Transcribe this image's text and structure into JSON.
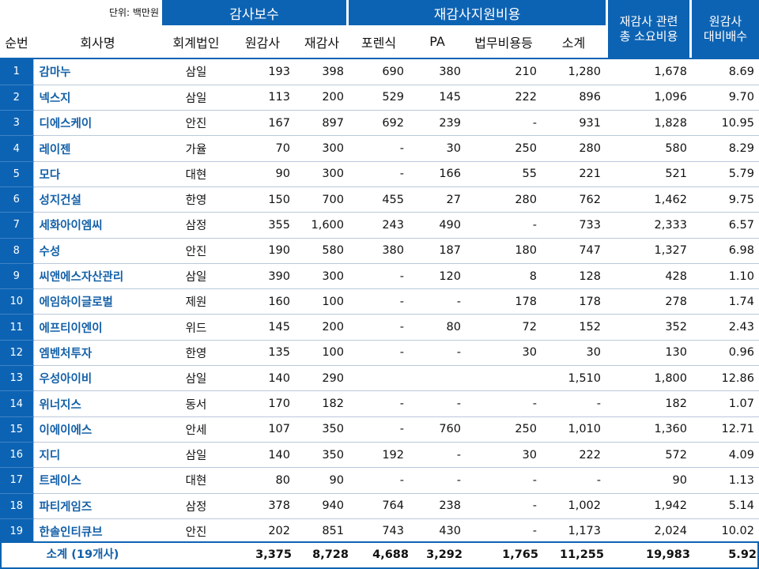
{
  "unit_label": "단위: 백만원",
  "groups": {
    "audit_fee": "감사보수",
    "reaudit_support": "재감사지원비용",
    "total_cost": "재감사 관련\n총 소요비용",
    "multiple": "원감사\n대비배수"
  },
  "columns": {
    "no": "순번",
    "company": "회사명",
    "firm": "회계법인",
    "original": "원감사",
    "reaudit": "재감사",
    "forensic": "포렌식",
    "pa": "PA",
    "legal": "법무비용등",
    "subtotal": "소계"
  },
  "rows": [
    {
      "no": "1",
      "company": "감마누",
      "firm": "삼일",
      "original": "193",
      "reaudit": "398",
      "forensic": "690",
      "pa": "380",
      "legal": "210",
      "subtotal": "1,280",
      "total": "1,678",
      "multiple": "8.69"
    },
    {
      "no": "2",
      "company": "넥스지",
      "firm": "삼일",
      "original": "113",
      "reaudit": "200",
      "forensic": "529",
      "pa": "145",
      "legal": "222",
      "subtotal": "896",
      "total": "1,096",
      "multiple": "9.70"
    },
    {
      "no": "3",
      "company": "디에스케이",
      "firm": "안진",
      "original": "167",
      "reaudit": "897",
      "forensic": "692",
      "pa": "239",
      "legal": "-",
      "subtotal": "931",
      "total": "1,828",
      "multiple": "10.95"
    },
    {
      "no": "4",
      "company": "레이젠",
      "firm": "가율",
      "original": "70",
      "reaudit": "300",
      "forensic": "-",
      "pa": "30",
      "legal": "250",
      "subtotal": "280",
      "total": "580",
      "multiple": "8.29"
    },
    {
      "no": "5",
      "company": "모다",
      "firm": "대현",
      "original": "90",
      "reaudit": "300",
      "forensic": "-",
      "pa": "166",
      "legal": "55",
      "subtotal": "221",
      "total": "521",
      "multiple": "5.79"
    },
    {
      "no": "6",
      "company": "성지건설",
      "firm": "한영",
      "original": "150",
      "reaudit": "700",
      "forensic": "455",
      "pa": "27",
      "legal": "280",
      "subtotal": "762",
      "total": "1,462",
      "multiple": "9.75"
    },
    {
      "no": "7",
      "company": "세화아이엠씨",
      "firm": "삼정",
      "original": "355",
      "reaudit": "1,600",
      "forensic": "243",
      "pa": "490",
      "legal": "-",
      "subtotal": "733",
      "total": "2,333",
      "multiple": "6.57"
    },
    {
      "no": "8",
      "company": "수성",
      "firm": "안진",
      "original": "190",
      "reaudit": "580",
      "forensic": "380",
      "pa": "187",
      "legal": "180",
      "subtotal": "747",
      "total": "1,327",
      "multiple": "6.98"
    },
    {
      "no": "9",
      "company": "씨앤에스자산관리",
      "firm": "삼일",
      "original": "390",
      "reaudit": "300",
      "forensic": "-",
      "pa": "120",
      "legal": "8",
      "subtotal": "128",
      "total": "428",
      "multiple": "1.10"
    },
    {
      "no": "10",
      "company": "에임하이글로벌",
      "firm": "제원",
      "original": "160",
      "reaudit": "100",
      "forensic": "-",
      "pa": "-",
      "legal": "178",
      "subtotal": "178",
      "total": "278",
      "multiple": "1.74"
    },
    {
      "no": "11",
      "company": "에프티이엔이",
      "firm": "위드",
      "original": "145",
      "reaudit": "200",
      "forensic": "-",
      "pa": "80",
      "legal": "72",
      "subtotal": "152",
      "total": "352",
      "multiple": "2.43"
    },
    {
      "no": "12",
      "company": "엠벤처투자",
      "firm": "한영",
      "original": "135",
      "reaudit": "100",
      "forensic": "-",
      "pa": "-",
      "legal": "30",
      "subtotal": "30",
      "total": "130",
      "multiple": "0.96"
    },
    {
      "no": "13",
      "company": "우성아이비",
      "firm": "삼일",
      "original": "140",
      "reaudit": "290",
      "forensic": "",
      "pa": "",
      "legal": "",
      "subtotal": "1,510",
      "total": "1,800",
      "multiple": "12.86"
    },
    {
      "no": "14",
      "company": "위너지스",
      "firm": "동서",
      "original": "170",
      "reaudit": "182",
      "forensic": "-",
      "pa": "-",
      "legal": "-",
      "subtotal": "-",
      "total": "182",
      "multiple": "1.07"
    },
    {
      "no": "15",
      "company": "이에이에스",
      "firm": "안세",
      "original": "107",
      "reaudit": "350",
      "forensic": "-",
      "pa": "760",
      "legal": "250",
      "subtotal": "1,010",
      "total": "1,360",
      "multiple": "12.71"
    },
    {
      "no": "16",
      "company": "지디",
      "firm": "삼일",
      "original": "140",
      "reaudit": "350",
      "forensic": "192",
      "pa": "-",
      "legal": "30",
      "subtotal": "222",
      "total": "572",
      "multiple": "4.09"
    },
    {
      "no": "17",
      "company": "트레이스",
      "firm": "대현",
      "original": "80",
      "reaudit": "90",
      "forensic": "-",
      "pa": "-",
      "legal": "-",
      "subtotal": "-",
      "total": "90",
      "multiple": "1.13"
    },
    {
      "no": "18",
      "company": "파티게임즈",
      "firm": "삼정",
      "original": "378",
      "reaudit": "940",
      "forensic": "764",
      "pa": "238",
      "legal": "-",
      "subtotal": "1,002",
      "total": "1,942",
      "multiple": "5.14"
    },
    {
      "no": "19",
      "company": "한솔인티큐브",
      "firm": "안진",
      "original": "202",
      "reaudit": "851",
      "forensic": "743",
      "pa": "430",
      "legal": "-",
      "subtotal": "1,173",
      "total": "2,024",
      "multiple": "10.02"
    }
  ],
  "totals": {
    "label": "소계 (19개사)",
    "original": "3,375",
    "reaudit": "8,728",
    "forensic": "4,688",
    "pa": "3,292",
    "legal": "1,765",
    "subtotal": "11,255",
    "total": "19,983",
    "multiple": "5.92"
  },
  "colors": {
    "accent": "#0d63b3",
    "name_text": "#1360a8"
  }
}
